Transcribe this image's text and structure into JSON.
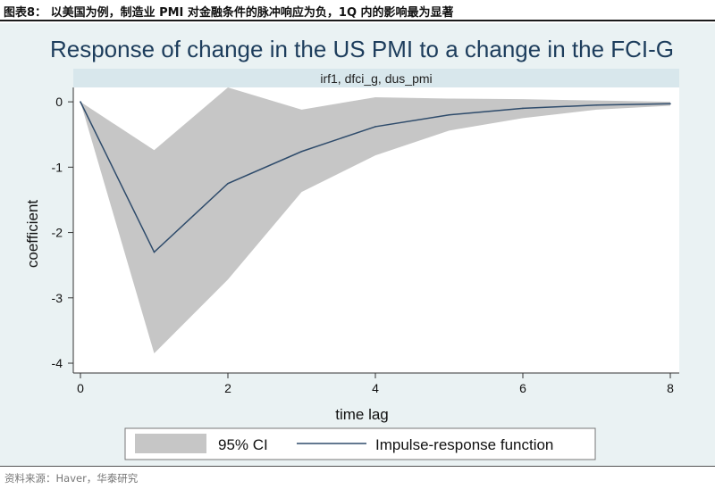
{
  "header": {
    "caption": "图表8：  以美国为例，制造业 PMI 对金融条件的脉冲响应为负，1Q 内的影响最为显著"
  },
  "footer": {
    "source": "资料来源：Haver，华泰研究"
  },
  "chart_data": {
    "type": "line",
    "title": "Response of change in the US PMI to a change in the FCI-G",
    "subtitle": "irf1, dfci_g, dus_pmi",
    "xlabel": "time lag",
    "ylabel": "coefficient",
    "xlim": [
      0,
      8
    ],
    "ylim": [
      -4.15,
      0.22
    ],
    "xticks": [
      0,
      2,
      4,
      6,
      8
    ],
    "yticks": [
      0,
      -1,
      -2,
      -3,
      -4
    ],
    "grid": false,
    "legend_position": "bottom",
    "x": [
      0,
      1,
      2,
      3,
      4,
      5,
      6,
      7,
      8
    ],
    "series": [
      {
        "name": "Impulse-response function",
        "kind": "line",
        "color": "#2e4b6b",
        "values": [
          0,
          -2.3,
          -1.25,
          -0.76,
          -0.38,
          -0.2,
          -0.1,
          -0.05,
          -0.03
        ]
      },
      {
        "name": "95% CI",
        "kind": "band",
        "color": "#c6c6c6",
        "lower": [
          0,
          -3.85,
          -2.72,
          -1.38,
          -0.82,
          -0.44,
          -0.25,
          -0.12,
          -0.06
        ],
        "upper": [
          0,
          -0.74,
          0.22,
          -0.12,
          0.07,
          0.05,
          0.04,
          0.02,
          0.0
        ]
      }
    ],
    "colors": {
      "background": "#eaf2f3",
      "plot_background": "#ffffff",
      "band": "#c6c6c6",
      "line": "#2e4b6b",
      "subtitle_strip": "#d8e7ec",
      "title": "#1d3d5c"
    }
  }
}
